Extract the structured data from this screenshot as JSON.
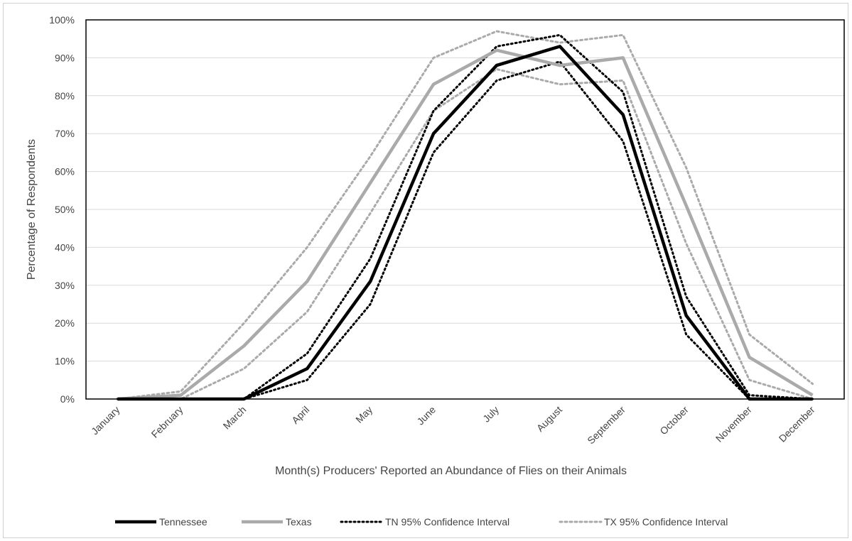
{
  "chart_data": {
    "type": "line",
    "title": "",
    "xlabel": "Month(s) Producers' Reported an Abundance of Flies on their Animals",
    "ylabel": "Percentage of Respondents",
    "ylim": [
      0,
      100
    ],
    "yticks": [
      "0%",
      "10%",
      "20%",
      "30%",
      "40%",
      "50%",
      "60%",
      "70%",
      "80%",
      "90%",
      "100%"
    ],
    "grid": true,
    "legend_position": "bottom",
    "categories": [
      "January",
      "February",
      "March",
      "April",
      "May",
      "June",
      "July",
      "August",
      "September",
      "October",
      "November",
      "December"
    ],
    "series": [
      {
        "name": "Tennessee",
        "color": "#000000",
        "style": "solid",
        "values": [
          0,
          0,
          0,
          8,
          31,
          70,
          88,
          93,
          75,
          22,
          0,
          0
        ]
      },
      {
        "name": "Texas",
        "color": "#aaaaaa",
        "style": "solid",
        "values": [
          0,
          1,
          14,
          31,
          57,
          83,
          92,
          88,
          90,
          51,
          11,
          1
        ]
      },
      {
        "name": "TN 95% Confidence Interval",
        "color": "#000000",
        "style": "dotted",
        "values": [
          0,
          0,
          0,
          12,
          37,
          76,
          93,
          96,
          81,
          27,
          1,
          0
        ],
        "values_lower": [
          0,
          0,
          0,
          5,
          25,
          65,
          84,
          89,
          68,
          17,
          0,
          0
        ]
      },
      {
        "name": "TX 95% Confidence Interval",
        "color": "#aaaaaa",
        "style": "dotted",
        "values": [
          0,
          2,
          20,
          40,
          64,
          90,
          97,
          94,
          96,
          61,
          17,
          4
        ],
        "values_lower": [
          0,
          0,
          8,
          23,
          49,
          76,
          87,
          83,
          84,
          41,
          5,
          0
        ]
      }
    ]
  }
}
